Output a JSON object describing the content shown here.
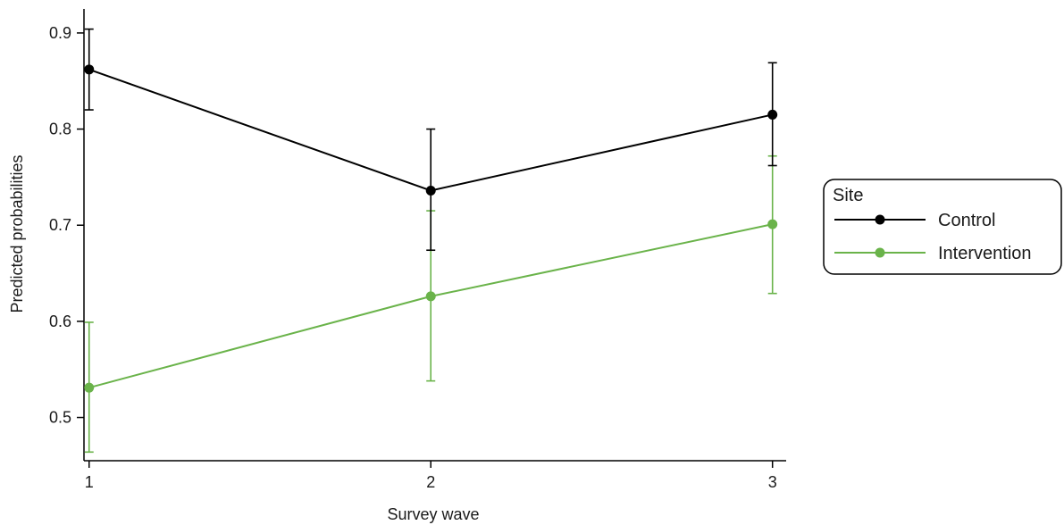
{
  "chart_data": {
    "type": "line",
    "xlabel": "Survey wave",
    "ylabel": "Predicted probabilities",
    "x": [
      1,
      2,
      3
    ],
    "xticks": [
      "1",
      "2",
      "3"
    ],
    "yticks": [
      "0.5",
      "0.6",
      "0.7",
      "0.8",
      "0.9"
    ],
    "xlim": [
      0.985,
      3.04
    ],
    "ylim": [
      0.455,
      0.925
    ],
    "grid": false,
    "legend": {
      "title": "Site",
      "placement": "right"
    },
    "series": [
      {
        "name": "Control",
        "color": "#000000",
        "values": [
          0.862,
          0.736,
          0.815
        ],
        "ci_low": [
          0.82,
          0.674,
          0.762
        ],
        "ci_high": [
          0.904,
          0.8,
          0.869
        ]
      },
      {
        "name": "Intervention",
        "color": "#6ab34a",
        "values": [
          0.531,
          0.626,
          0.701
        ],
        "ci_low": [
          0.464,
          0.538,
          0.629
        ],
        "ci_high": [
          0.599,
          0.715,
          0.772
        ]
      }
    ]
  }
}
